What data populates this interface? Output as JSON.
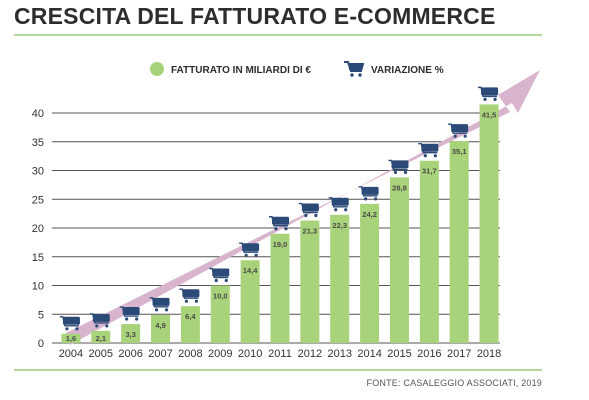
{
  "header": {
    "title": "CRESCITA DEL FATTURATO E-COMMERCE",
    "source": "FONTE: CASALEGGIO ASSOCIATI, 2019"
  },
  "colors": {
    "bar": "#a9d37a",
    "arrow": "#d8b4cf",
    "cart": "#2b4a78",
    "grid": "#555555",
    "rule": "#b6d89a"
  },
  "icons": {
    "legend_bar": "green-circle",
    "legend_variation": "shopping-cart-icon",
    "bar_marker": "shopping-cart-icon"
  },
  "chart_data": {
    "type": "bar",
    "title": "CRESCITA DEL FATTURATO E-COMMERCE",
    "xlabel": "",
    "ylabel": "",
    "ylim": [
      0,
      40
    ],
    "yticks": [
      "0",
      "5",
      "10",
      "15",
      "20",
      "25",
      "30",
      "35",
      "40"
    ],
    "grid": true,
    "legend_position": "top",
    "categories": [
      "2004",
      "2005",
      "2006",
      "2007",
      "2008",
      "2009",
      "2010",
      "2011",
      "2012",
      "2013",
      "2014",
      "2015",
      "2016",
      "2017",
      "2018"
    ],
    "series": [
      {
        "name": "FATTURATO IN MILIARDI DI €",
        "values": [
          1.6,
          2.1,
          3.3,
          4.9,
          6.4,
          10.0,
          14.4,
          19.0,
          21.3,
          22.3,
          24.2,
          28.8,
          31.7,
          35.1,
          41.5
        ],
        "labels": [
          "1,6",
          "2,1",
          "3,3",
          "4,9",
          "6,4",
          "10,0",
          "14,4",
          "19,0",
          "21,3",
          "22,3",
          "24,2",
          "28,8",
          "31,7",
          "35,1",
          "41,5"
        ]
      }
    ],
    "legend": [
      "FATTURATO IN MILIARDI DI €",
      "VARIAZIONE %"
    ]
  }
}
